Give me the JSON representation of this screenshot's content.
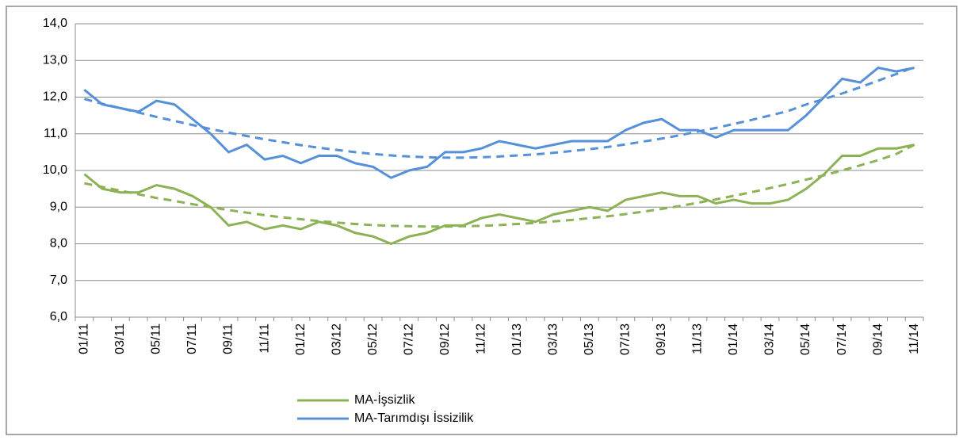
{
  "chart_data": {
    "type": "line",
    "categories": [
      "01/11",
      null,
      "03/11",
      null,
      "05/11",
      null,
      "07/11",
      null,
      "09/11",
      null,
      "11/11",
      null,
      "01/12",
      null,
      "03/12",
      null,
      "05/12",
      null,
      "07/12",
      null,
      "09/12",
      null,
      "11/12",
      null,
      "01/13",
      null,
      "03/13",
      null,
      "05/13",
      null,
      "07/13",
      null,
      "09/13",
      null,
      "11/13",
      null,
      "01/14",
      null,
      "03/14",
      null,
      "05/14",
      null,
      "07/14",
      null,
      "09/14",
      null,
      "11/14"
    ],
    "series": [
      {
        "name": "MA-İşsizlik",
        "color": "#8db255",
        "values": [
          9.9,
          9.5,
          9.4,
          9.4,
          9.6,
          9.5,
          9.3,
          9.0,
          8.5,
          8.6,
          8.4,
          8.5,
          8.4,
          8.6,
          8.5,
          8.3,
          8.2,
          8.0,
          8.2,
          8.3,
          8.5,
          8.5,
          8.7,
          8.8,
          8.7,
          8.6,
          8.8,
          8.9,
          9.0,
          8.9,
          9.2,
          9.3,
          9.4,
          9.3,
          9.3,
          9.1,
          9.2,
          9.1,
          9.1,
          9.2,
          9.5,
          9.9,
          10.4,
          10.4,
          10.6,
          10.6,
          10.7
        ],
        "trend": [
          9.65,
          9.55,
          9.45,
          9.35,
          9.25,
          9.17,
          9.08,
          9.0,
          8.92,
          8.85,
          8.78,
          8.72,
          8.67,
          8.62,
          8.58,
          8.54,
          8.51,
          8.49,
          8.48,
          8.47,
          8.47,
          8.48,
          8.49,
          8.51,
          8.54,
          8.57,
          8.61,
          8.65,
          8.7,
          8.75,
          8.81,
          8.88,
          8.95,
          9.03,
          9.12,
          9.21,
          9.31,
          9.41,
          9.52,
          9.63,
          9.75,
          9.87,
          10.0,
          10.14,
          10.28,
          10.45,
          10.7
        ]
      },
      {
        "name": "MA-Tarımdışı İssizilik",
        "color": "#5590d9",
        "values": [
          12.2,
          11.8,
          11.7,
          11.6,
          11.9,
          11.8,
          11.4,
          11.0,
          10.5,
          10.7,
          10.3,
          10.4,
          10.2,
          10.4,
          10.4,
          10.2,
          10.1,
          9.8,
          10.0,
          10.1,
          10.5,
          10.5,
          10.6,
          10.8,
          10.7,
          10.6,
          10.7,
          10.8,
          10.8,
          10.8,
          11.1,
          11.3,
          11.4,
          11.1,
          11.1,
          10.9,
          11.1,
          11.1,
          11.1,
          11.1,
          11.5,
          12.0,
          12.5,
          12.4,
          12.8,
          12.7,
          12.8
        ],
        "trend": [
          11.95,
          11.82,
          11.7,
          11.58,
          11.46,
          11.35,
          11.24,
          11.13,
          11.03,
          10.94,
          10.85,
          10.77,
          10.69,
          10.62,
          10.56,
          10.5,
          10.45,
          10.41,
          10.38,
          10.36,
          10.35,
          10.35,
          10.36,
          10.38,
          10.41,
          10.44,
          10.48,
          10.53,
          10.58,
          10.64,
          10.71,
          10.79,
          10.87,
          10.96,
          11.06,
          11.16,
          11.27,
          11.38,
          11.5,
          11.62,
          11.8,
          11.95,
          12.1,
          12.27,
          12.45,
          12.63,
          12.82
        ]
      }
    ],
    "ylim": [
      6,
      14
    ],
    "yticks": [
      {
        "value": 6,
        "label": "6,0"
      },
      {
        "value": 7,
        "label": "7,0"
      },
      {
        "value": 8,
        "label": "8,0"
      },
      {
        "value": 9,
        "label": "9,0"
      },
      {
        "value": 10,
        "label": "10,0"
      },
      {
        "value": 11,
        "label": "11,0"
      },
      {
        "value": 12,
        "label": "12,0"
      },
      {
        "value": 13,
        "label": "13,0"
      },
      {
        "value": 14,
        "label": "14,0"
      }
    ],
    "grid": true
  }
}
